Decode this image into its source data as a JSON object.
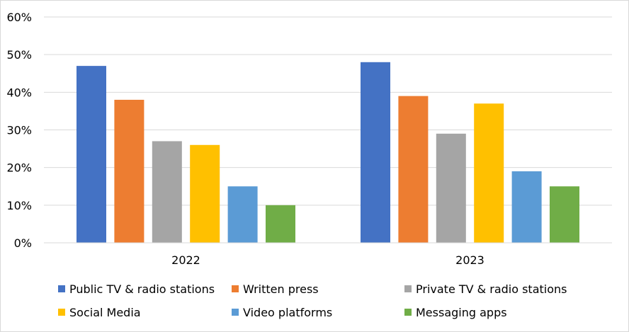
{
  "chart_data": {
    "type": "bar",
    "categories": [
      "2022",
      "2023"
    ],
    "series": [
      {
        "name": "Public TV & radio stations",
        "color": "#4472C4",
        "values": [
          47,
          48
        ]
      },
      {
        "name": "Written press",
        "color": "#ED7D31",
        "values": [
          38,
          39
        ]
      },
      {
        "name": "Private TV & radio stations",
        "color": "#A5A5A5",
        "values": [
          27,
          29
        ]
      },
      {
        "name": "Social Media",
        "color": "#FFC000",
        "values": [
          26,
          37
        ]
      },
      {
        "name": "Video platforms",
        "color": "#5B9BD5",
        "values": [
          15,
          19
        ]
      },
      {
        "name": "Messaging apps",
        "color": "#70AD47",
        "values": [
          10,
          15
        ]
      }
    ],
    "y_ticks": [
      "0%",
      "10%",
      "20%",
      "30%",
      "40%",
      "50%",
      "60%"
    ],
    "ylim": [
      0,
      60
    ],
    "y_unit": "%",
    "grid": true,
    "legend_position": "bottom",
    "title": "",
    "xlabel": "",
    "ylabel": ""
  }
}
